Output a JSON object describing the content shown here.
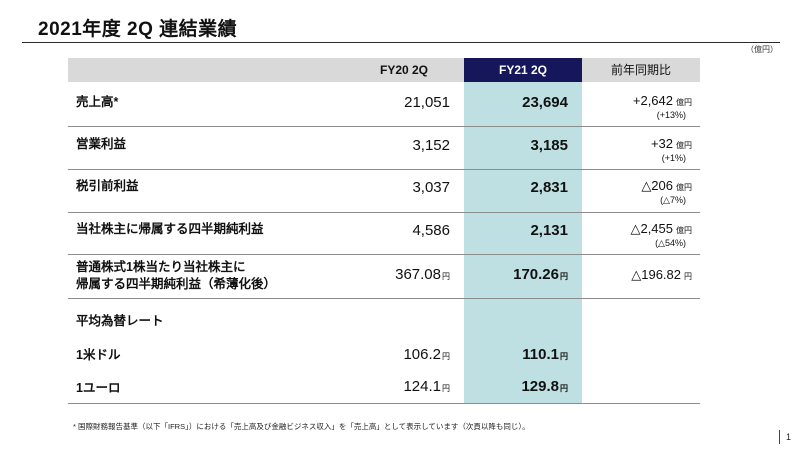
{
  "title": "2021年度 2Q 連結業績",
  "unit": "（億円）",
  "header": {
    "fy20": "FY20 2Q",
    "fy21": "FY21 2Q",
    "comparison": "前年同期比"
  },
  "rows": [
    {
      "label": "売上高*",
      "fy20": "21,051",
      "fy21": "23,694",
      "diff": "+2,642",
      "diff_unit": "億円",
      "pct": "(+13%)"
    },
    {
      "label": "営業利益",
      "fy20": "3,152",
      "fy21": "3,185",
      "diff": "+32",
      "diff_unit": "億円",
      "pct": "(+1%)"
    },
    {
      "label": "税引前利益",
      "fy20": "3,037",
      "fy21": "2,831",
      "diff": "△206",
      "diff_unit": "億円",
      "pct": "(△7%)"
    },
    {
      "label": "当社株主に帰属する四半期純利益",
      "fy20": "4,586",
      "fy21": "2,131",
      "diff": "△2,455",
      "diff_unit": "億円",
      "pct": "(△54%)"
    }
  ],
  "eps": {
    "label_line1": "普通株式1株当たり当社株主に",
    "label_line2": "帰属する四半期純利益（希薄化後）",
    "fy20": "367.08",
    "fy21": "170.26",
    "diff": "△196.82",
    "unit": "円"
  },
  "fx": {
    "heading": "平均為替レート",
    "rows": [
      {
        "label": "1米ドル",
        "fy20": "106.2",
        "fy21": "110.1",
        "unit": "円"
      },
      {
        "label": "1ユーロ",
        "fy20": "124.1",
        "fy21": "129.8",
        "unit": "円"
      }
    ]
  },
  "footnote": "* 国際財務報告基準（以下「IFRS」）における「売上高及び金融ビジネス収入」を「売上高」として表示しています（次頁以降も同じ）。",
  "page_number": "1"
}
